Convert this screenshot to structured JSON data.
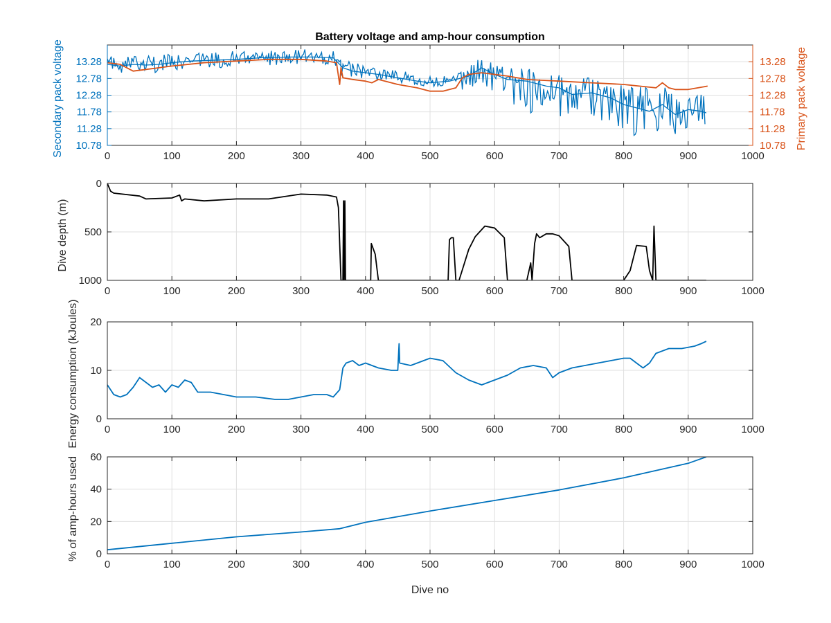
{
  "figure": {
    "title": "Battery voltage and amp-hour consumption",
    "xlabel": "Dive no"
  },
  "colors": {
    "blue": "#0072BD",
    "orange": "#D95319",
    "black": "#000000",
    "grid": "#dfdfdf",
    "axis": "#262626"
  },
  "chart_data": [
    {
      "type": "line",
      "title": "Battery voltage and amp-hour consumption",
      "xlabel": "",
      "ylabel": "Secondary pack voltage",
      "ylabel_right": "Primary pack voltage",
      "xlim": [
        0,
        1000
      ],
      "ylim": [
        10.78,
        13.78
      ],
      "xticks": [
        0,
        100,
        200,
        300,
        400,
        500,
        600,
        700,
        800,
        900,
        1000
      ],
      "yticks": [
        10.78,
        11.28,
        11.78,
        12.28,
        12.78,
        13.28
      ],
      "yticks_right": [
        10.78,
        11.28,
        11.78,
        12.28,
        12.78,
        13.28
      ],
      "grid": true,
      "series": [
        {
          "color": "#0072BD",
          "axis": "left",
          "x": [
            0,
            20,
            40,
            60,
            80,
            100,
            130,
            160,
            200,
            240,
            280,
            320,
            350,
            365,
            380,
            400,
            420,
            450,
            480,
            500,
            530,
            560,
            580,
            600,
            620,
            650,
            680,
            700,
            720,
            750,
            780,
            800,
            820,
            840,
            860,
            880,
            900,
            920,
            928
          ],
          "y": [
            13.2,
            13.15,
            13.2,
            13.18,
            13.2,
            13.25,
            13.3,
            13.32,
            13.35,
            13.4,
            13.42,
            13.42,
            13.4,
            13.1,
            13.0,
            12.95,
            12.9,
            12.8,
            12.7,
            12.65,
            12.7,
            12.85,
            13.1,
            12.9,
            12.75,
            12.7,
            12.55,
            12.5,
            12.3,
            12.35,
            12.2,
            12.0,
            11.9,
            11.8,
            12.0,
            11.7,
            11.85,
            11.8,
            11.75
          ],
          "band_low": [
            12.9,
            12.95,
            12.95,
            12.95,
            12.95,
            13.0,
            13.05,
            13.1,
            13.1,
            13.15,
            13.2,
            13.2,
            13.2,
            12.8,
            12.75,
            12.7,
            12.7,
            12.65,
            12.55,
            12.55,
            12.5,
            12.4,
            12.7,
            12.2,
            12.0,
            11.7,
            11.8,
            11.6,
            11.5,
            11.4,
            11.5,
            11.1,
            11.0,
            10.9,
            11.3,
            11.1,
            11.2,
            11.3,
            11.3
          ],
          "band_high": [
            13.5,
            13.4,
            13.45,
            13.5,
            13.5,
            13.5,
            13.55,
            13.55,
            13.6,
            13.6,
            13.65,
            13.65,
            13.6,
            13.4,
            13.3,
            13.2,
            13.1,
            13.0,
            12.95,
            12.85,
            12.9,
            13.2,
            13.45,
            13.25,
            13.1,
            13.1,
            13.0,
            12.9,
            12.8,
            12.8,
            12.7,
            12.6,
            12.6,
            12.5,
            12.6,
            12.3,
            12.4,
            12.35,
            12.3
          ]
        },
        {
          "color": "#D95319",
          "axis": "right",
          "x": [
            0,
            20,
            40,
            60,
            80,
            100,
            150,
            200,
            250,
            300,
            340,
            355,
            360,
            362,
            365,
            380,
            400,
            410,
            420,
            450,
            480,
            500,
            520,
            530,
            540,
            550,
            560,
            580,
            600,
            620,
            650,
            700,
            750,
            800,
            850,
            860,
            870,
            880,
            900,
            930
          ],
          "y": [
            13.25,
            13.2,
            13.0,
            13.05,
            13.1,
            13.15,
            13.25,
            13.3,
            13.35,
            13.35,
            13.3,
            13.25,
            12.6,
            13.1,
            12.8,
            12.75,
            12.7,
            12.65,
            12.75,
            12.6,
            12.5,
            12.4,
            12.4,
            12.45,
            12.5,
            12.8,
            12.9,
            12.95,
            12.9,
            12.85,
            12.75,
            12.7,
            12.65,
            12.6,
            12.5,
            12.65,
            12.5,
            12.45,
            12.45,
            12.55
          ]
        }
      ]
    },
    {
      "type": "line",
      "title": "",
      "xlabel": "",
      "ylabel": "Dive depth (m)",
      "xlim": [
        0,
        1000
      ],
      "ylim": [
        0,
        1000
      ],
      "y_reversed": true,
      "xticks": [
        0,
        100,
        200,
        300,
        400,
        500,
        600,
        700,
        800,
        900,
        1000
      ],
      "yticks": [
        0,
        500,
        1000
      ],
      "grid": true,
      "series": [
        {
          "color": "#000000",
          "x": [
            0,
            5,
            10,
            50,
            60,
            100,
            112,
            115,
            120,
            150,
            200,
            250,
            300,
            340,
            355,
            358,
            362,
            365,
            366,
            367,
            368,
            369,
            370,
            400,
            408,
            409,
            415,
            420,
            500,
            528,
            530,
            533,
            536,
            540,
            545,
            560,
            570,
            585,
            600,
            615,
            620,
            622,
            650,
            656,
            658,
            662,
            665,
            670,
            680,
            690,
            700,
            715,
            720,
            780,
            800,
            810,
            820,
            835,
            840,
            845,
            847,
            850,
            860,
            928
          ],
          "y": [
            0,
            80,
            100,
            130,
            160,
            150,
            120,
            180,
            160,
            180,
            160,
            160,
            110,
            120,
            140,
            250,
            1000,
            1000,
            180,
            1000,
            180,
            1000,
            1000,
            1000,
            1000,
            620,
            730,
            1000,
            1000,
            1000,
            580,
            560,
            560,
            1000,
            1000,
            680,
            550,
            440,
            460,
            560,
            1000,
            1000,
            1000,
            820,
            1000,
            620,
            520,
            560,
            520,
            520,
            540,
            650,
            1000,
            1000,
            1000,
            900,
            640,
            650,
            900,
            1000,
            440,
            1000,
            1000,
            1000
          ]
        }
      ]
    },
    {
      "type": "line",
      "title": "",
      "xlabel": "",
      "ylabel": "Energy consumption (kJoules)",
      "xlim": [
        0,
        1000
      ],
      "ylim": [
        0,
        20
      ],
      "xticks": [
        0,
        100,
        200,
        300,
        400,
        500,
        600,
        700,
        800,
        900,
        1000
      ],
      "yticks": [
        0,
        10,
        20
      ],
      "grid": true,
      "series": [
        {
          "color": "#0072BD",
          "x": [
            0,
            10,
            20,
            30,
            40,
            50,
            60,
            70,
            80,
            90,
            100,
            110,
            120,
            130,
            140,
            160,
            180,
            200,
            230,
            260,
            280,
            300,
            320,
            340,
            350,
            360,
            365,
            370,
            380,
            390,
            400,
            420,
            440,
            450,
            452,
            453,
            470,
            490,
            500,
            520,
            540,
            560,
            570,
            580,
            600,
            620,
            640,
            660,
            680,
            690,
            700,
            720,
            740,
            760,
            780,
            800,
            810,
            820,
            830,
            840,
            850,
            870,
            890,
            910,
            920,
            928
          ],
          "y": [
            7.0,
            5.0,
            4.5,
            5.0,
            6.5,
            8.5,
            7.5,
            6.5,
            7.0,
            5.5,
            7.0,
            6.5,
            8.0,
            7.5,
            5.5,
            5.5,
            5.0,
            4.5,
            4.5,
            4.0,
            4.0,
            4.5,
            5.0,
            5.0,
            4.5,
            6.0,
            10.5,
            11.5,
            12.0,
            11.0,
            11.5,
            10.5,
            10.0,
            10.0,
            15.5,
            11.5,
            11.0,
            12.0,
            12.5,
            12.0,
            9.5,
            8.0,
            7.5,
            7.0,
            8.0,
            9.0,
            10.5,
            11.0,
            10.5,
            8.5,
            9.5,
            10.5,
            11.0,
            11.5,
            12.0,
            12.5,
            12.5,
            11.5,
            10.5,
            11.5,
            13.5,
            14.5,
            14.5,
            15.0,
            15.5,
            16.0
          ]
        }
      ]
    },
    {
      "type": "line",
      "title": "",
      "xlabel": "Dive no",
      "ylabel": "% of amp-hours used",
      "xlim": [
        0,
        1000
      ],
      "ylim": [
        0,
        60
      ],
      "xticks": [
        0,
        100,
        200,
        300,
        400,
        500,
        600,
        700,
        800,
        900,
        1000
      ],
      "yticks": [
        0,
        20,
        40,
        60
      ],
      "grid": true,
      "series": [
        {
          "color": "#0072BD",
          "x": [
            0,
            100,
            200,
            300,
            360,
            400,
            500,
            600,
            700,
            800,
            900,
            928
          ],
          "y": [
            2.5,
            6.5,
            10.5,
            13.5,
            15.5,
            19.5,
            26.5,
            33.0,
            39.5,
            47.0,
            56.0,
            60.0
          ]
        }
      ]
    }
  ]
}
